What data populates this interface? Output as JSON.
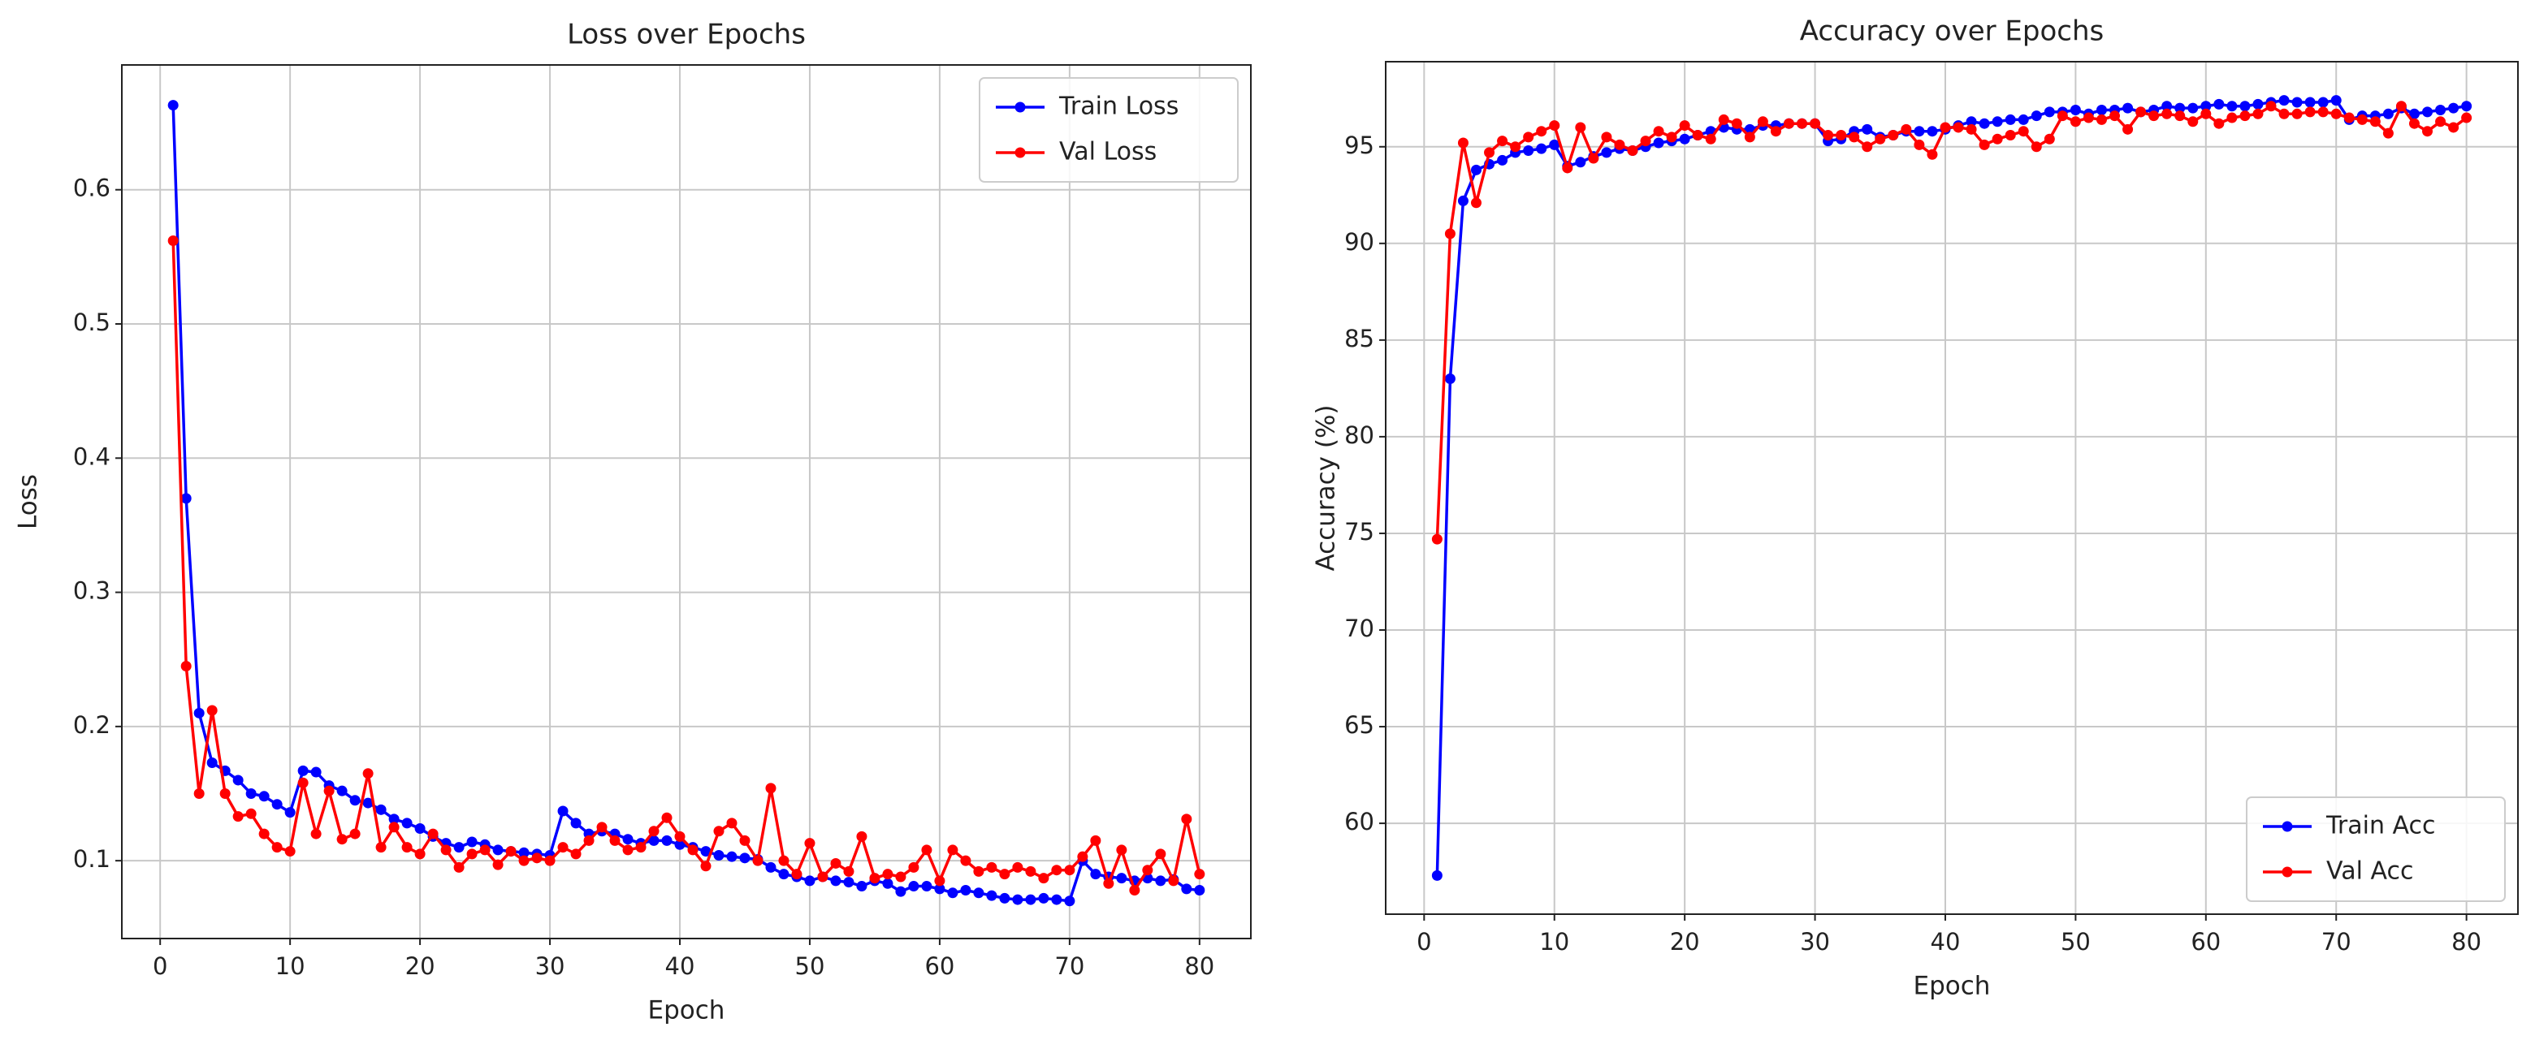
{
  "chart_data": [
    {
      "type": "line",
      "title": "Loss over Epochs",
      "xlabel": "Epoch",
      "ylabel": "Loss",
      "x": [
        1,
        2,
        3,
        4,
        5,
        6,
        7,
        8,
        9,
        10,
        11,
        12,
        13,
        14,
        15,
        16,
        17,
        18,
        19,
        20,
        21,
        22,
        23,
        24,
        25,
        26,
        27,
        28,
        29,
        30,
        31,
        32,
        33,
        34,
        35,
        36,
        37,
        38,
        39,
        40,
        41,
        42,
        43,
        44,
        45,
        46,
        47,
        48,
        49,
        50,
        51,
        52,
        53,
        54,
        55,
        56,
        57,
        58,
        59,
        60,
        61,
        62,
        63,
        64,
        65,
        66,
        67,
        68,
        69,
        70,
        71,
        72,
        73,
        74,
        75,
        76,
        77,
        78,
        79,
        80
      ],
      "series": [
        {
          "name": "Train Loss",
          "color": "#0000ff",
          "values": [
            0.663,
            0.37,
            0.21,
            0.173,
            0.167,
            0.16,
            0.15,
            0.148,
            0.142,
            0.136,
            0.167,
            0.166,
            0.156,
            0.152,
            0.145,
            0.143,
            0.138,
            0.131,
            0.128,
            0.124,
            0.118,
            0.113,
            0.11,
            0.114,
            0.112,
            0.108,
            0.107,
            0.106,
            0.105,
            0.104,
            0.137,
            0.128,
            0.12,
            0.122,
            0.12,
            0.116,
            0.113,
            0.115,
            0.115,
            0.112,
            0.11,
            0.107,
            0.104,
            0.103,
            0.102,
            0.101,
            0.095,
            0.09,
            0.088,
            0.085,
            0.088,
            0.085,
            0.084,
            0.081,
            0.085,
            0.083,
            0.077,
            0.081,
            0.081,
            0.079,
            0.076,
            0.078,
            0.076,
            0.074,
            0.072,
            0.071,
            0.071,
            0.072,
            0.071,
            0.07,
            0.1,
            0.09,
            0.088,
            0.087,
            0.085,
            0.087,
            0.085,
            0.086,
            0.079,
            0.078
          ]
        },
        {
          "name": "Val Loss",
          "color": "#ff0000",
          "values": [
            0.562,
            0.245,
            0.15,
            0.212,
            0.15,
            0.133,
            0.135,
            0.12,
            0.11,
            0.107,
            0.158,
            0.12,
            0.152,
            0.116,
            0.12,
            0.165,
            0.11,
            0.125,
            0.11,
            0.105,
            0.12,
            0.108,
            0.095,
            0.105,
            0.108,
            0.097,
            0.107,
            0.1,
            0.102,
            0.1,
            0.11,
            0.105,
            0.115,
            0.125,
            0.115,
            0.108,
            0.11,
            0.122,
            0.132,
            0.118,
            0.108,
            0.096,
            0.122,
            0.128,
            0.115,
            0.1,
            0.154,
            0.1,
            0.09,
            0.113,
            0.088,
            0.098,
            0.092,
            0.118,
            0.087,
            0.09,
            0.088,
            0.095,
            0.108,
            0.085,
            0.108,
            0.1,
            0.092,
            0.095,
            0.09,
            0.095,
            0.092,
            0.087,
            0.093,
            0.093,
            0.103,
            0.115,
            0.083,
            0.108,
            0.078,
            0.093,
            0.105,
            0.085,
            0.131,
            0.09
          ]
        }
      ],
      "xlim": [
        -2.95,
        83.95
      ],
      "ylim": [
        0.042,
        0.693
      ],
      "xticks": [
        0,
        10,
        20,
        30,
        40,
        50,
        60,
        70,
        80
      ],
      "yticks": [
        0.1,
        0.2,
        0.3,
        0.4,
        0.5,
        0.6
      ],
      "grid": true,
      "legend": "upper right"
    },
    {
      "type": "line",
      "title": "Accuracy over Epochs",
      "xlabel": "Epoch",
      "ylabel": "Accuracy (%)",
      "x": [
        1,
        2,
        3,
        4,
        5,
        6,
        7,
        8,
        9,
        10,
        11,
        12,
        13,
        14,
        15,
        16,
        17,
        18,
        19,
        20,
        21,
        22,
        23,
        24,
        25,
        26,
        27,
        28,
        29,
        30,
        31,
        32,
        33,
        34,
        35,
        36,
        37,
        38,
        39,
        40,
        41,
        42,
        43,
        44,
        45,
        46,
        47,
        48,
        49,
        50,
        51,
        52,
        53,
        54,
        55,
        56,
        57,
        58,
        59,
        60,
        61,
        62,
        63,
        64,
        65,
        66,
        67,
        68,
        69,
        70,
        71,
        72,
        73,
        74,
        75,
        76,
        77,
        78,
        79,
        80
      ],
      "series": [
        {
          "name": "Train Acc",
          "color": "#0000ff",
          "values": [
            57.3,
            83.0,
            92.2,
            93.8,
            94.1,
            94.3,
            94.7,
            94.8,
            94.9,
            95.1,
            94.0,
            94.2,
            94.5,
            94.7,
            94.9,
            94.8,
            95.0,
            95.2,
            95.3,
            95.4,
            95.6,
            95.8,
            96.0,
            95.9,
            95.9,
            96.1,
            96.1,
            96.2,
            96.2,
            96.2,
            95.3,
            95.4,
            95.8,
            95.9,
            95.5,
            95.6,
            95.8,
            95.8,
            95.8,
            95.9,
            96.1,
            96.3,
            96.2,
            96.3,
            96.4,
            96.4,
            96.6,
            96.8,
            96.8,
            96.9,
            96.7,
            96.9,
            96.9,
            97.0,
            96.8,
            96.9,
            97.1,
            97.0,
            97.0,
            97.1,
            97.2,
            97.1,
            97.1,
            97.2,
            97.3,
            97.4,
            97.3,
            97.3,
            97.3,
            97.4,
            96.4,
            96.6,
            96.6,
            96.7,
            97.0,
            96.7,
            96.8,
            96.9,
            97.0,
            97.1
          ]
        },
        {
          "name": "Val Acc",
          "color": "#ff0000",
          "values": [
            74.7,
            90.5,
            95.2,
            92.1,
            94.7,
            95.3,
            95.0,
            95.5,
            95.8,
            96.1,
            93.9,
            96.0,
            94.4,
            95.5,
            95.1,
            94.8,
            95.3,
            95.8,
            95.5,
            96.1,
            95.6,
            95.4,
            96.4,
            96.2,
            95.5,
            96.3,
            95.8,
            96.2,
            96.2,
            96.2,
            95.6,
            95.6,
            95.5,
            95.0,
            95.4,
            95.6,
            95.9,
            95.1,
            94.6,
            96.0,
            96.0,
            95.9,
            95.1,
            95.4,
            95.6,
            95.8,
            95.0,
            95.4,
            96.6,
            96.3,
            96.5,
            96.4,
            96.6,
            95.9,
            96.8,
            96.6,
            96.7,
            96.6,
            96.3,
            96.7,
            96.2,
            96.5,
            96.6,
            96.7,
            97.1,
            96.7,
            96.7,
            96.8,
            96.8,
            96.7,
            96.5,
            96.4,
            96.3,
            95.7,
            97.1,
            96.2,
            95.8,
            96.3,
            96.0,
            96.5
          ]
        }
      ],
      "xlim": [
        -2.95,
        83.95
      ],
      "ylim": [
        55.3,
        99.4
      ],
      "xticks": [
        0,
        10,
        20,
        30,
        40,
        50,
        60,
        70,
        80
      ],
      "yticks": [
        60,
        65,
        70,
        75,
        80,
        85,
        90,
        95
      ],
      "grid": true,
      "legend": "lower right"
    }
  ]
}
